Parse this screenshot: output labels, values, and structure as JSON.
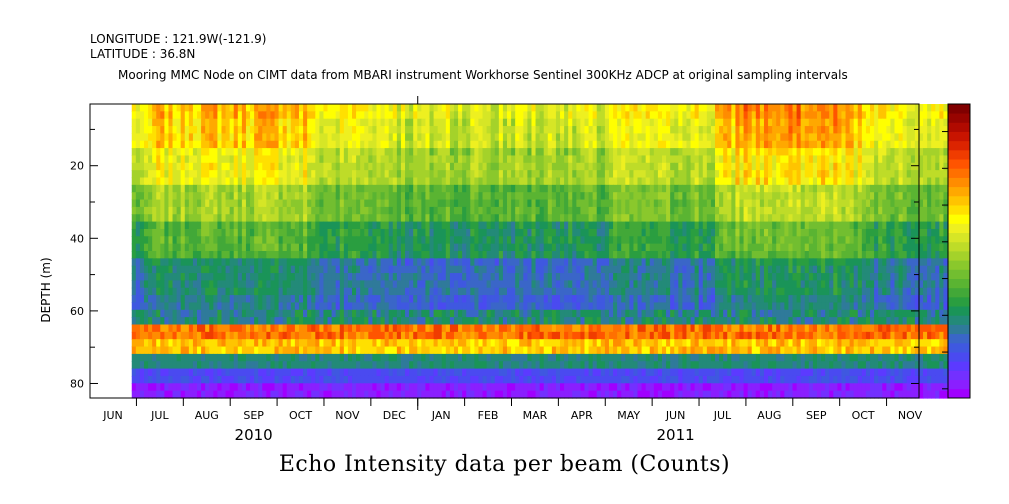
{
  "header": {
    "longitude": "LONGITUDE : 121.9W(-121.9)",
    "latitude": "LATITUDE : 36.8N",
    "title": "Mooring MMC Node on CIMT data from MBARI instrument Workhorse Sentinel 300KHz ADCP at original sampling intervals"
  },
  "chart_data": {
    "type": "heatmap",
    "title": "Echo Intensity data per beam (Counts)",
    "ylabel": "DEPTH (m)",
    "ylim": [
      84,
      3
    ],
    "y_ticks": [
      20,
      40,
      60,
      80
    ],
    "x_month_labels": [
      "JUN",
      "JUL",
      "AUG",
      "SEP",
      "OCT",
      "NOV",
      "DEC",
      "JAN",
      "FEB",
      "MAR",
      "APR",
      "MAY",
      "JUN",
      "JUL",
      "AUG",
      "SEP",
      "OCT",
      "NOV"
    ],
    "years": [
      {
        "label": "2010",
        "month_index": 3
      },
      {
        "label": "2011",
        "month_index": 12
      }
    ],
    "data_start_month": 0.4,
    "data_end_month": 17.8,
    "colorbar_levels": 32,
    "colorbar_colors": [
      "#a000ff",
      "#8a1fff",
      "#7330ff",
      "#5c3aff",
      "#4a4af0",
      "#3f58e0",
      "#3a66c8",
      "#2f7a9a",
      "#238a78",
      "#1a9458",
      "#2a9e40",
      "#42a838",
      "#5ab432",
      "#72be30",
      "#8ac82c",
      "#a4d22a",
      "#bedc28",
      "#d6e626",
      "#eef020",
      "#ffff00",
      "#ffe000",
      "#ffc400",
      "#ffa800",
      "#ff8c00",
      "#ff7000",
      "#ff5400",
      "#f03c00",
      "#dc2400",
      "#c81400",
      "#b00a00",
      "#980400",
      "#800000"
    ]
  }
}
